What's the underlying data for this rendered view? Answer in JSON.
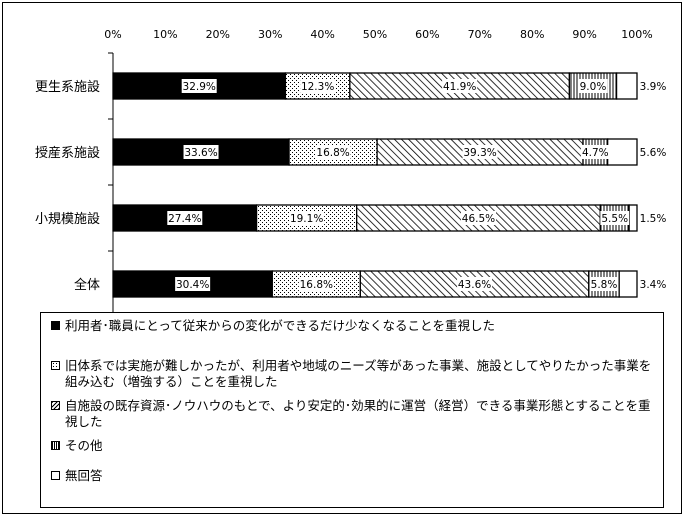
{
  "chart_data": {
    "type": "bar",
    "orientation": "horizontal",
    "stacked": true,
    "categories": [
      "更生系施設",
      "授産系施設",
      "小規模施設",
      "全体"
    ],
    "x_ticks": [
      "0%",
      "10%",
      "20%",
      "30%",
      "40%",
      "50%",
      "60%",
      "70%",
      "80%",
      "90%",
      "100%"
    ],
    "xlim": [
      0,
      100
    ],
    "legend_position": "bottom",
    "series": [
      {
        "name": "利用者･職員にとって従来からの変化ができるだけ少なくなることを重視した",
        "pattern": "solid-black",
        "values": [
          32.9,
          33.6,
          27.4,
          30.4
        ],
        "labels": [
          "32.9%",
          "33.6%",
          "27.4%",
          "30.4%"
        ]
      },
      {
        "name": "旧体系では実施が難しかったが、利用者や地域のニーズ等があった事業、施設としてやりたかった事業を組み込む（増強する）ことを重視した",
        "pattern": "dots",
        "values": [
          12.3,
          16.8,
          19.1,
          16.8
        ],
        "labels": [
          "12.3%",
          "16.8%",
          "19.1%",
          "16.8%"
        ]
      },
      {
        "name": "自施設の既存資源･ノウハウのもとで、より安定的･効果的に運営（経営）できる事業形態とすることを重視した",
        "pattern": "diagonal",
        "values": [
          41.9,
          39.3,
          46.5,
          43.6
        ],
        "labels": [
          "41.9%",
          "39.3%",
          "46.5%",
          "43.6%"
        ]
      },
      {
        "name": "その他",
        "pattern": "vertical-lines",
        "values": [
          9.0,
          4.7,
          5.5,
          5.8
        ],
        "labels": [
          "9.0%",
          "4.7%",
          "5.5%",
          "5.8%"
        ]
      },
      {
        "name": "無回答",
        "pattern": "white",
        "values": [
          3.9,
          5.6,
          1.5,
          3.4
        ],
        "labels": [
          "3.9%",
          "5.6%",
          "1.5%",
          "3.4%"
        ]
      }
    ],
    "colors": {
      "solid": "#000000",
      "pattern": "#000000",
      "background": "#ffffff"
    }
  }
}
